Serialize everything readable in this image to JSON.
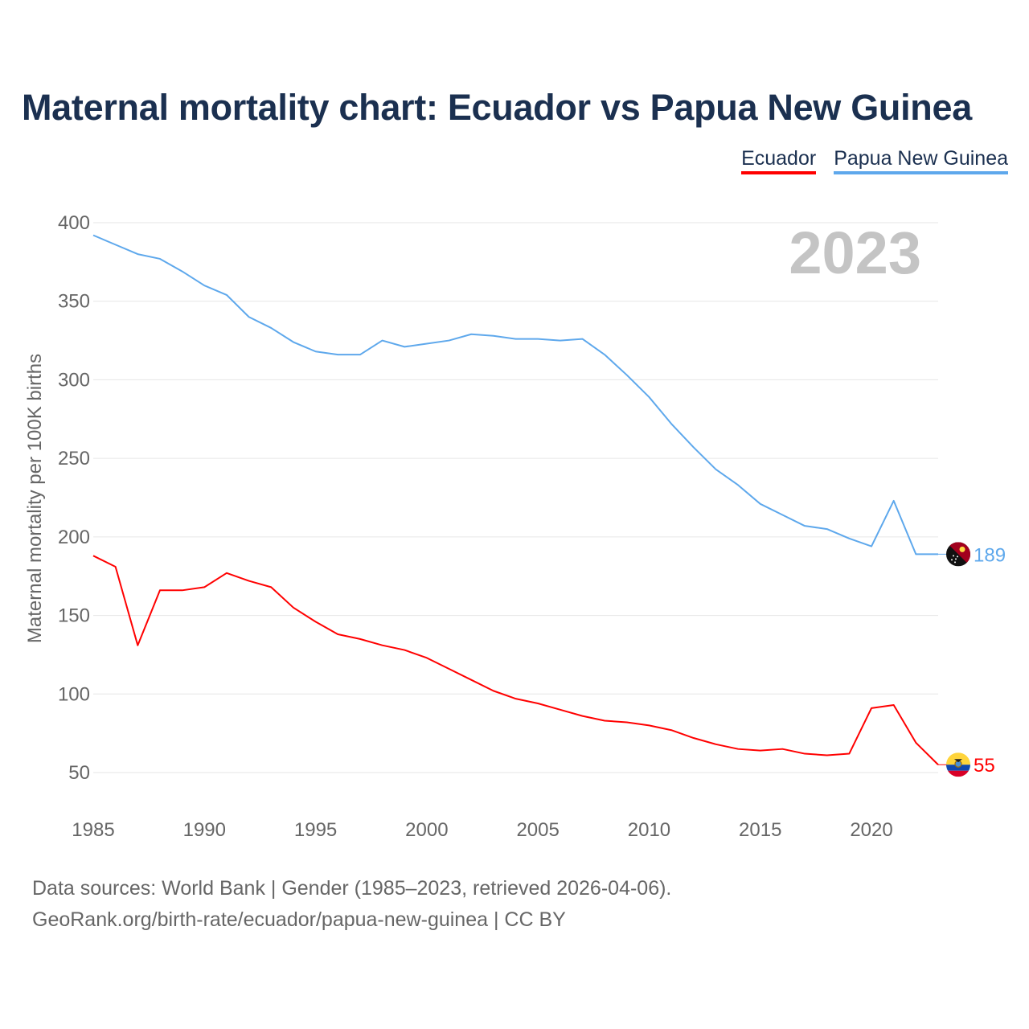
{
  "chart_data": {
    "type": "line",
    "title": "Maternal mortality chart: Ecuador vs Papua New Guinea",
    "xlabel": "",
    "ylabel": "Maternal mortality per 100K births",
    "xlim": [
      1985,
      2023
    ],
    "ylim": [
      50,
      400
    ],
    "x_ticks": [
      1985,
      1990,
      1995,
      2000,
      2005,
      2010,
      2015,
      2020
    ],
    "y_ticks": [
      50,
      100,
      150,
      200,
      250,
      300,
      350,
      400
    ],
    "grid": true,
    "legend_position": "top-right",
    "year_label": "2023",
    "x": [
      1985,
      1986,
      1987,
      1988,
      1989,
      1990,
      1991,
      1992,
      1993,
      1994,
      1995,
      1996,
      1997,
      1998,
      1999,
      2000,
      2001,
      2002,
      2003,
      2004,
      2005,
      2006,
      2007,
      2008,
      2009,
      2010,
      2011,
      2012,
      2013,
      2014,
      2015,
      2016,
      2017,
      2018,
      2019,
      2020,
      2021,
      2022,
      2023
    ],
    "series": [
      {
        "name": "Ecuador",
        "color": "#ff0000",
        "end_label": "55",
        "values": [
          188,
          181,
          131,
          166,
          166,
          168,
          177,
          172,
          168,
          155,
          146,
          138,
          135,
          131,
          128,
          123,
          116,
          109,
          102,
          97,
          94,
          90,
          86,
          83,
          82,
          80,
          77,
          72,
          68,
          65,
          64,
          65,
          62,
          61,
          62,
          91,
          93,
          69,
          55
        ]
      },
      {
        "name": "Papua New Guinea",
        "color": "#5ea8ec",
        "end_label": "189",
        "values": [
          392,
          386,
          380,
          377,
          369,
          360,
          354,
          340,
          333,
          324,
          318,
          316,
          316,
          325,
          321,
          323,
          325,
          329,
          328,
          326,
          326,
          325,
          326,
          316,
          303,
          289,
          272,
          257,
          243,
          233,
          221,
          214,
          207,
          205,
          199,
          194,
          223,
          189,
          189
        ]
      }
    ]
  },
  "footer": {
    "line1": "Data sources: World Bank | Gender (1985–2023, retrieved 2026-04-06).",
    "line2": "GeoRank.org/birth-rate/ecuador/papua-new-guinea | CC BY"
  }
}
